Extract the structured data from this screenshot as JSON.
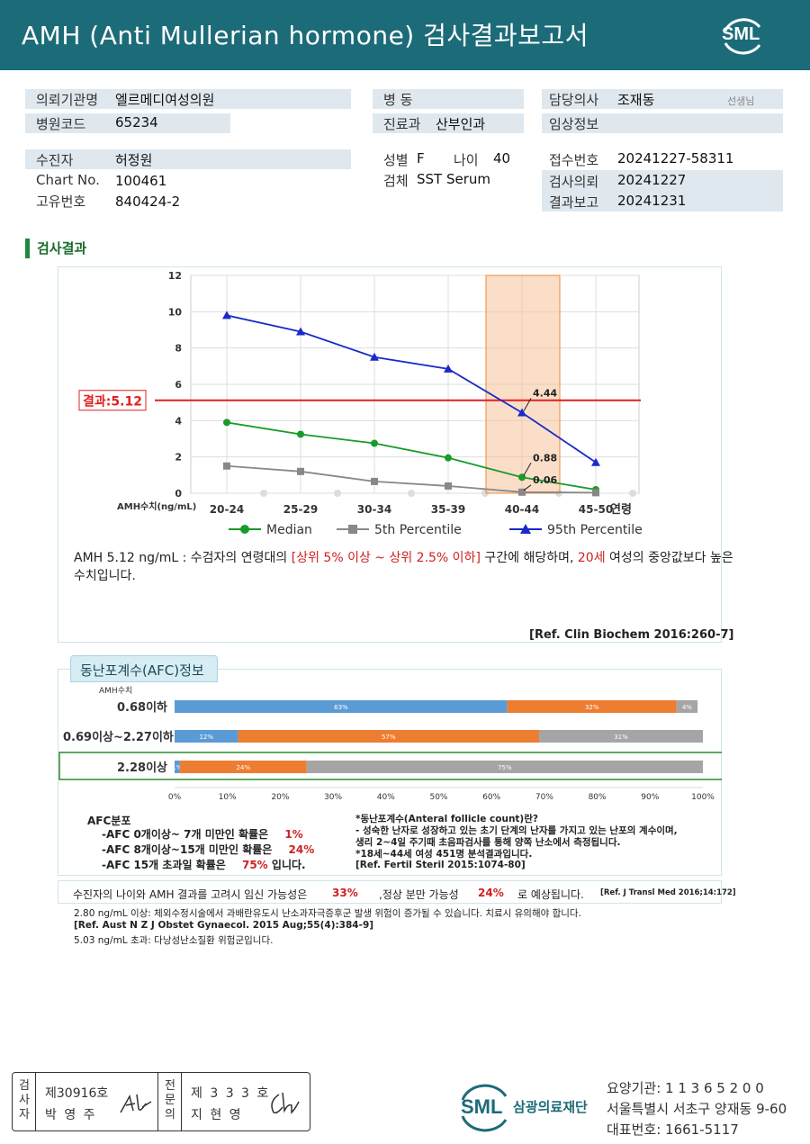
{
  "header": {
    "title": "AMH (Anti Mullerian hormone) 검사결과보고서",
    "logo_text": "SML"
  },
  "info": {
    "requester_label": "의뢰기관명",
    "requester": "엘르메디여성의원",
    "code_label": "병원코드",
    "code": "65234",
    "ward_label": "병 동",
    "ward": "",
    "dept_label": "진료과",
    "dept": "산부인과",
    "doctor_label": "담당의사",
    "doctor": "조재동",
    "doctor_suffix": "선생님",
    "clinical_label": "임상정보",
    "clinical": "",
    "patient_label": "수진자",
    "patient": "허정원",
    "chart_label": "Chart No.",
    "chart": "100461",
    "id_label": "고유번호",
    "id": "840424-2",
    "sex_label": "성별",
    "sex": "F",
    "age_label": "나이",
    "age": "40",
    "specimen_label": "검체",
    "specimen": "SST Serum",
    "receipt_label": "접수번호",
    "receipt": "20241227-58311",
    "request_label": "검사의뢰",
    "request": "20241227",
    "report_label": "결과보고",
    "report": "20241231"
  },
  "section_title": "검사결과",
  "chart_data": {
    "type": "line",
    "categories": [
      "20-24",
      "25-29",
      "30-34",
      "35-39",
      "40-44",
      "45-50"
    ],
    "x_suffix": "연령",
    "ylabel": "AMH수치(ng/mL)",
    "ylim": [
      0,
      12
    ],
    "yticks": [
      0,
      2,
      4,
      6,
      8,
      10,
      12
    ],
    "series": [
      {
        "name": "Median",
        "color": "#1a9a2a",
        "marker": "circle",
        "values": [
          3.9,
          3.25,
          2.75,
          1.95,
          0.88,
          0.2
        ]
      },
      {
        "name": "5th Percentile",
        "color": "#888888",
        "marker": "square",
        "values": [
          1.5,
          1.2,
          0.65,
          0.4,
          0.06,
          0.03
        ]
      },
      {
        "name": "95th Percentile",
        "color": "#1a2ac8",
        "marker": "triangle",
        "values": [
          9.8,
          8.9,
          7.5,
          6.85,
          4.44,
          1.7
        ]
      }
    ],
    "highlight_category": "40-44",
    "result_line": {
      "label": "결과:5.12",
      "value": 5.12,
      "color": "#e02020"
    },
    "annotations": [
      "4.44",
      "0.88",
      "0.06"
    ]
  },
  "result_text": {
    "part1": "AMH   5.12 ng/mL : 수검자의 연령대의 ",
    "part2": "[상위 5% 이상 ~ 상위 2.5% 이하]",
    "part3": "  구간에 해당하며, ",
    "part4": "20세",
    "part5": " 여성의 중앙값보다 높은 수치입니다.",
    "ref": "[Ref. Clin Biochem 2016:260-7]"
  },
  "afc": {
    "tab": "동난포계수(AFC)정보",
    "amh_label": "AMH수치",
    "rows": [
      {
        "label": "0.68이하",
        "segments": [
          63,
          32,
          4
        ],
        "texts": [
          "63%",
          "32%",
          "4%"
        ]
      },
      {
        "label": "0.69이상~2.27이하",
        "segments": [
          12,
          57,
          31
        ],
        "texts": [
          "12%",
          "57%",
          "31%"
        ]
      },
      {
        "label": "2.28이상",
        "segments": [
          1,
          24,
          75
        ],
        "texts": [
          "1%",
          "24%",
          "75%"
        ]
      }
    ],
    "segment_colors": [
      "#5b9bd5",
      "#ed7d31",
      "#a5a5a5"
    ],
    "axis": [
      "0%",
      "10%",
      "20%",
      "30%",
      "40%",
      "50%",
      "60%",
      "70%",
      "80%",
      "90%",
      "100%"
    ],
    "dist_title": "AFC분포",
    "dist1": "-AFC  0개이상~ 7개  미만인  확률은",
    "dist1_val": "1%",
    "dist2": "-AFC  8개이상~15개  미만인  확률은",
    "dist2_val": "24%",
    "dist3": "-AFC  15개  초과일  확률은",
    "dist3_val": "75%",
    "dist3_end": "입니다.",
    "note1": "*동난포계수(Anteral  follicle  count)란?",
    "note2": "- 성숙한  난자로  성장하고  있는  초기  단계의  난자를  가지고  있는  난포의  계수이며,",
    "note3": "  생리  2~4일  주기때  초음파검사를  통해  양쪽  난소에서  측정됩니다.",
    "note4": "*18세~44세  여성  451명  분석결과입니다.",
    "note5": "[Ref.  Fertil  Steril  2015:1074-80]"
  },
  "pregnancy": {
    "text1": "수진자의  나이와  AMH  결과를  고려시  임신  가능성은",
    "val1": "33%",
    "text2": ",정상  분만  가능성",
    "val2": "24%",
    "text3": "로  예상됩니다.",
    "ref": "[Ref. J Transl Med 2016;14:172]"
  },
  "notes": {
    "line1": "2.80  ng/mL  이상: 체외수정시술에서  과배란유도시  난소과자극증후군  발생  위험이  증가될  수  있습니다.  치료시  유의해야  합니다.",
    "line2": "[Ref. Aust N Z J Obstet Gynaecol. 2015 Aug;55(4):384-9]",
    "line3": "5.03  ng/mL  초과: 다낭성난소질환  위험군입니다."
  },
  "stamp": {
    "examiner_label": "검사자",
    "examiner_no": "제30916호",
    "examiner_name": "박  영  주",
    "specialist_label": "전문의",
    "specialist_no": "제 3 3 3 호",
    "specialist_name": "지  현  영"
  },
  "org": {
    "logo": "SML",
    "name": "삼광의료재단",
    "code": "요양기관: 1 1 3 6 5 2 0 0",
    "address": "서울특별시 서초구 양재동 9-60",
    "phone": "대표번호: 1661-5117"
  }
}
